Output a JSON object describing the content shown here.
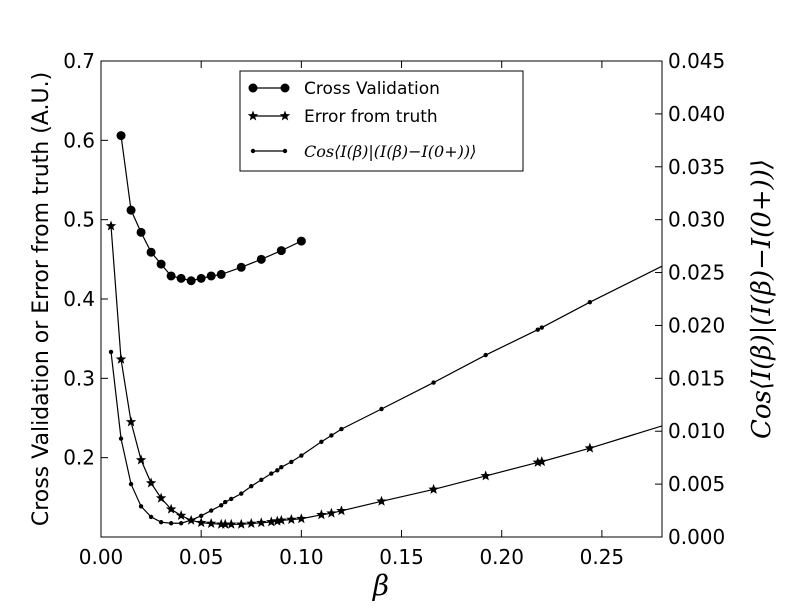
{
  "chart_data": {
    "type": "line",
    "xlabel": "β",
    "ylabel_left": "Cross Validation or Error from truth (A.U.)",
    "ylabel_right": "Cos⟨I(β)|(I(β)−I(0+))⟩",
    "xlim": [
      0.0,
      0.28
    ],
    "ylim_left": [
      0.1,
      0.7
    ],
    "ylim_right": [
      0.0,
      0.045
    ],
    "x_ticks": [
      "0.00",
      "0.05",
      "0.10",
      "0.15",
      "0.20",
      "0.25"
    ],
    "y_left_ticks": [
      "0.2",
      "0.3",
      "0.4",
      "0.5",
      "0.6",
      "0.7"
    ],
    "y_right_ticks": [
      "0.000",
      "0.005",
      "0.010",
      "0.015",
      "0.020",
      "0.025",
      "0.030",
      "0.035",
      "0.040",
      "0.045"
    ],
    "grid": false,
    "legend_position": "top-center",
    "series": [
      {
        "name": "Cross Validation",
        "axis": "left",
        "marker": "circle",
        "x": [
          0.01,
          0.015,
          0.02,
          0.025,
          0.03,
          0.035,
          0.04,
          0.045,
          0.05,
          0.055,
          0.06,
          0.07,
          0.08,
          0.09,
          0.1
        ],
        "y": [
          0.606,
          0.512,
          0.484,
          0.459,
          0.444,
          0.429,
          0.426,
          0.423,
          0.426,
          0.429,
          0.431,
          0.44,
          0.45,
          0.461,
          0.473
        ]
      },
      {
        "name": "Error from truth",
        "axis": "left",
        "marker": "star",
        "x": [
          0.005,
          0.01,
          0.015,
          0.02,
          0.025,
          0.03,
          0.035,
          0.04,
          0.045,
          0.05,
          0.055,
          0.06,
          0.062,
          0.065,
          0.07,
          0.075,
          0.08,
          0.085,
          0.088,
          0.09,
          0.095,
          0.1,
          0.11,
          0.115,
          0.12,
          0.14,
          0.166,
          0.192,
          0.218,
          0.22,
          0.244,
          0.28
        ],
        "y": [
          0.492,
          0.324,
          0.245,
          0.197,
          0.168,
          0.149,
          0.135,
          0.127,
          0.121,
          0.118,
          0.117,
          0.116,
          0.116,
          0.116,
          0.116,
          0.117,
          0.118,
          0.119,
          0.12,
          0.121,
          0.122,
          0.123,
          0.128,
          0.13,
          0.133,
          0.145,
          0.16,
          0.177,
          0.194,
          0.195,
          0.212,
          0.24
        ]
      },
      {
        "name": "Cos⟨I(β)|(I(β)−I(0+))⟩",
        "axis": "right",
        "marker": "dot",
        "x": [
          0.005,
          0.01,
          0.015,
          0.02,
          0.025,
          0.03,
          0.035,
          0.04,
          0.045,
          0.05,
          0.055,
          0.06,
          0.062,
          0.065,
          0.07,
          0.075,
          0.08,
          0.085,
          0.088,
          0.09,
          0.095,
          0.1,
          0.11,
          0.115,
          0.12,
          0.14,
          0.166,
          0.192,
          0.218,
          0.22,
          0.244,
          0.28
        ],
        "y": [
          0.0175,
          0.0093,
          0.005,
          0.0029,
          0.0019,
          0.0014,
          0.0013,
          0.0013,
          0.0016,
          0.002,
          0.0025,
          0.003,
          0.0033,
          0.0036,
          0.0041,
          0.0048,
          0.0054,
          0.006,
          0.0063,
          0.0066,
          0.0071,
          0.0077,
          0.009,
          0.0096,
          0.0102,
          0.0121,
          0.0146,
          0.0172,
          0.0196,
          0.0198,
          0.0222,
          0.0256
        ]
      }
    ]
  }
}
